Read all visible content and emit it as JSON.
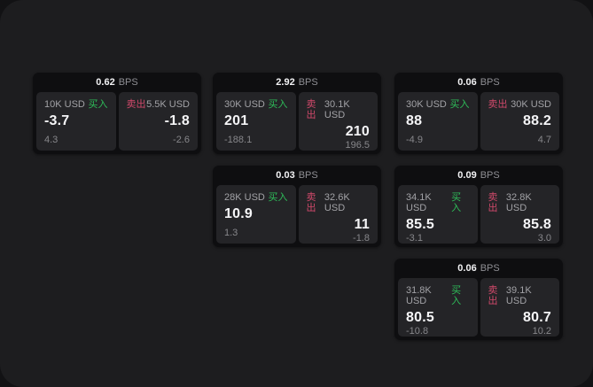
{
  "colors": {
    "buy_green": "#2ebd59",
    "sell_red": "#d1496b",
    "panel_bg": "#1d1d1f",
    "card_bg": "#0e0e10",
    "tile_bg": "#242427"
  },
  "cards": [
    {
      "bps": "0.62",
      "bps_unit": "BPS",
      "grid": {
        "row": 0,
        "col": 0
      },
      "buy": {
        "tag": "买入",
        "amount": "10K USD",
        "value": "-3.7",
        "sub": "4.3"
      },
      "sell": {
        "tag": "卖出",
        "amount": "5.5K USD",
        "value": "-1.8",
        "sub": "-2.6"
      }
    },
    {
      "bps": "2.92",
      "bps_unit": "BPS",
      "grid": {
        "row": 0,
        "col": 1
      },
      "buy": {
        "tag": "买入",
        "amount": "30K USD",
        "value": "201",
        "sub": "-188.1"
      },
      "sell": {
        "tag": "卖出",
        "amount": "30.1K USD",
        "value": "210",
        "sub": "196.5"
      }
    },
    {
      "bps": "0.06",
      "bps_unit": "BPS",
      "grid": {
        "row": 0,
        "col": 2
      },
      "buy": {
        "tag": "买入",
        "amount": "30K USD",
        "value": "88",
        "sub": "-4.9"
      },
      "sell": {
        "tag": "卖出",
        "amount": "30K USD",
        "value": "88.2",
        "sub": "4.7"
      }
    },
    {
      "bps": "0.03",
      "bps_unit": "BPS",
      "grid": {
        "row": 1,
        "col": 1
      },
      "buy": {
        "tag": "买入",
        "amount": "28K USD",
        "value": "10.9",
        "sub": "1.3"
      },
      "sell": {
        "tag": "卖出",
        "amount": "32.6K USD",
        "value": "11",
        "sub": "-1.8"
      }
    },
    {
      "bps": "0.09",
      "bps_unit": "BPS",
      "grid": {
        "row": 1,
        "col": 2
      },
      "buy": {
        "tag": "买入",
        "amount": "34.1K USD",
        "value": "85.5",
        "sub": "-3.1"
      },
      "sell": {
        "tag": "卖出",
        "amount": "32.8K USD",
        "value": "85.8",
        "sub": "3.0"
      }
    },
    {
      "bps": "0.06",
      "bps_unit": "BPS",
      "grid": {
        "row": 2,
        "col": 2
      },
      "buy": {
        "tag": "买入",
        "amount": "31.8K USD",
        "value": "80.5",
        "sub": "-10.8"
      },
      "sell": {
        "tag": "卖出",
        "amount": "39.1K USD",
        "value": "80.7",
        "sub": "10.2"
      }
    }
  ]
}
